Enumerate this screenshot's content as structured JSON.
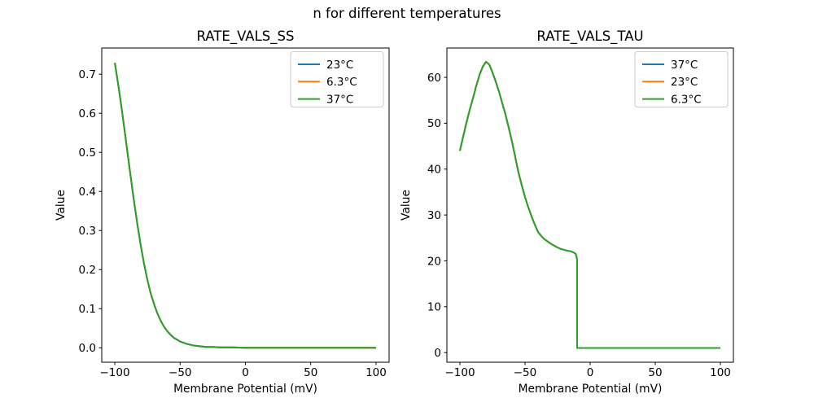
{
  "figure": {
    "suptitle": "n for different temperatures"
  },
  "colors": {
    "background": "#ffffff",
    "axis": "#000000",
    "text": "#000000",
    "legend_border": "#cccccc",
    "legend_fill": "#ffffff",
    "series_blue": "#1f77b4",
    "series_orange": "#ff7f0e",
    "series_green": "#2ca02c"
  },
  "chart_data": [
    {
      "id": "rate-vals-ss",
      "type": "line",
      "title": "RATE_VALS_SS",
      "xlabel": "Membrane Potential (mV)",
      "ylabel": "Value",
      "xlim": [
        -110,
        110
      ],
      "ylim": [
        -0.037,
        0.767
      ],
      "xticks": [
        -100,
        -50,
        0,
        50,
        100
      ],
      "xtick_labels": [
        "−100",
        "−50",
        "0",
        "50",
        "100"
      ],
      "yticks": [
        0.0,
        0.1,
        0.2,
        0.3,
        0.4,
        0.5,
        0.6,
        0.7
      ],
      "ytick_labels": [
        "0.0",
        "0.1",
        "0.2",
        "0.3",
        "0.4",
        "0.5",
        "0.6",
        "0.7"
      ],
      "grid": false,
      "legend_position": "upper right",
      "series_note": "All three temperature curves are identical and overlap exactly; only the last-drawn series (37°C, green) is visible.",
      "series": [
        {
          "name": "23°C",
          "color": "#1f77b4",
          "values": "shared"
        },
        {
          "name": "6.3°C",
          "color": "#ff7f0e",
          "values": "shared"
        },
        {
          "name": "37°C",
          "color": "#2ca02c",
          "values": "shared"
        }
      ],
      "x": [
        -100,
        -97.5,
        -95,
        -92.5,
        -90,
        -87.5,
        -85,
        -82.5,
        -80,
        -77.5,
        -75,
        -72.5,
        -70,
        -67.5,
        -65,
        -62.5,
        -60,
        -57.5,
        -55,
        -52.5,
        -50,
        -45,
        -40,
        -35,
        -30,
        -25,
        -20,
        -10,
        0,
        20,
        40,
        60,
        80,
        100
      ],
      "shared_values": [
        0.729,
        0.676,
        0.618,
        0.556,
        0.492,
        0.429,
        0.368,
        0.311,
        0.259,
        0.213,
        0.173,
        0.139,
        0.112,
        0.089,
        0.07,
        0.055,
        0.043,
        0.034,
        0.026,
        0.021,
        0.016,
        0.01,
        0.006,
        0.004,
        0.002,
        0.002,
        0.001,
        0.001,
        0.0,
        0.0,
        0.0,
        0.0,
        0.0,
        0.0
      ]
    },
    {
      "id": "rate-vals-tau",
      "type": "line",
      "title": "RATE_VALS_TAU",
      "xlabel": "Membrane Potential (mV)",
      "ylabel": "Value",
      "xlim": [
        -110,
        110
      ],
      "ylim": [
        -2.1,
        66.4
      ],
      "xticks": [
        -100,
        -50,
        0,
        50,
        100
      ],
      "xtick_labels": [
        "−100",
        "−50",
        "0",
        "50",
        "100"
      ],
      "yticks": [
        0,
        10,
        20,
        30,
        40,
        50,
        60
      ],
      "ytick_labels": [
        "0",
        "10",
        "20",
        "30",
        "40",
        "50",
        "60"
      ],
      "grid": false,
      "legend_position": "upper right",
      "series_note": "All three temperature curves are identical and overlap exactly; only the last-drawn series (6.3°C, green) is visible. Curve peaks at ~63.3 near −80 mV and drops discontinuously to 1 at −10 mV.",
      "series": [
        {
          "name": "37°C",
          "color": "#1f77b4",
          "values": "shared"
        },
        {
          "name": "23°C",
          "color": "#ff7f0e",
          "values": "shared"
        },
        {
          "name": "6.3°C",
          "color": "#2ca02c",
          "values": "shared"
        }
      ],
      "x": [
        -100,
        -97.5,
        -95,
        -92.5,
        -90,
        -87.5,
        -85,
        -82.5,
        -80,
        -77.5,
        -75,
        -72.5,
        -70,
        -67.5,
        -65,
        -62.5,
        -60,
        -57.5,
        -55,
        -52.5,
        -50,
        -47.5,
        -45,
        -42.5,
        -40,
        -37.5,
        -35,
        -32.5,
        -30,
        -27.5,
        -25,
        -22.5,
        -20,
        -17.5,
        -15,
        -12.5,
        -11,
        -10,
        -10,
        0,
        25,
        50,
        75,
        100
      ],
      "shared_values": [
        44.0,
        47.1,
        50.1,
        52.9,
        55.4,
        58.1,
        60.5,
        62.3,
        63.4,
        62.8,
        61.1,
        59.1,
        56.9,
        54.4,
        51.9,
        49.0,
        46.0,
        42.6,
        39.2,
        36.5,
        33.9,
        31.7,
        29.7,
        27.9,
        26.3,
        25.4,
        24.7,
        24.2,
        23.7,
        23.3,
        22.9,
        22.6,
        22.4,
        22.2,
        22.1,
        21.8,
        21.5,
        20.3,
        1.0,
        1.0,
        1.0,
        1.0,
        1.0,
        1.0
      ]
    }
  ]
}
